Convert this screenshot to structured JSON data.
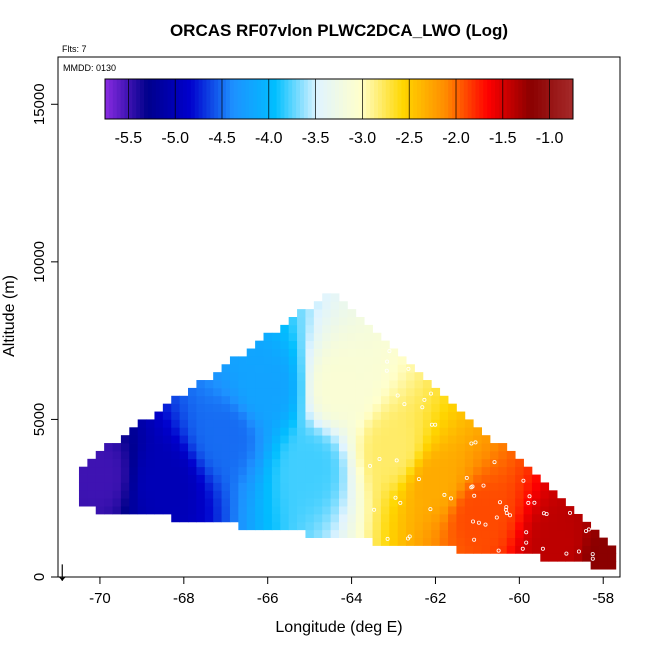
{
  "chart_data": {
    "type": "heatmap",
    "title": "ORCAS RF07vlon PLWC2DCA_LWO (Log)",
    "flts_label": "Flts: 7",
    "mmdd_label": "MMDD: 0130",
    "xlabel": "Longitude (deg E)",
    "ylabel": "Altitude (m)",
    "xlim": [
      -71,
      -57.6
    ],
    "ylim": [
      0,
      16500
    ],
    "x_ticks": [
      -70,
      -68,
      -66,
      -64,
      -62,
      -60,
      -58
    ],
    "x_tick_labels": [
      "-70",
      "-68",
      "-66",
      "-64",
      "-62",
      "-60",
      "-58"
    ],
    "y_ticks": [
      0,
      5000,
      10000,
      15000
    ],
    "y_tick_labels": [
      "0",
      "5000",
      "10000",
      "15000"
    ],
    "colorbar": {
      "range": [
        -5.75,
        -0.75
      ],
      "ticks": [
        -5.5,
        -5.0,
        -4.5,
        -4.0,
        -3.5,
        -3.0,
        -2.5,
        -2.0,
        -1.5,
        -1.0
      ],
      "tick_labels": [
        "-5.5",
        "-5.0",
        "-4.5",
        "-4.0",
        "-3.5",
        "-3.0",
        "-2.5",
        "-2.0",
        "-1.5",
        "-1.0"
      ],
      "colors": [
        "#8a2be2",
        "#00008b",
        "#0000cd",
        "#1e90ff",
        "#00bfff",
        "#e0f4ff",
        "#ffffcc",
        "#ffd700",
        "#ff8c00",
        "#ff0000",
        "#8b0000",
        "#a52a2a"
      ]
    },
    "arrow_marker": {
      "longitude": -70.9,
      "symbol": "↓"
    },
    "grid_cell": {
      "dlon": 0.2,
      "dalt": 250
    },
    "envelope": {
      "peak_longitude": -64.5,
      "peak_altitude": 8900,
      "left_base_longitude": -70.5,
      "left_base_altitude": 2200,
      "right_base_longitude": -57.8,
      "right_base_altitude": 300,
      "bottom_edge": [
        [
          -70.5,
          2200
        ],
        [
          -64,
          1200
        ],
        [
          -62.6,
          1000
        ],
        [
          -60,
          700
        ],
        [
          -57.8,
          300
        ]
      ]
    },
    "value_field_description_points": [
      {
        "longitude": -70,
        "altitude": 3200,
        "value": -5.5
      },
      {
        "longitude": -68.5,
        "altitude": 3000,
        "value": -5.0
      },
      {
        "longitude": -67,
        "altitude": 4500,
        "value": -4.5
      },
      {
        "longitude": -66,
        "altitude": 6000,
        "value": -4.2
      },
      {
        "longitude": -65,
        "altitude": 3500,
        "value": -3.8
      },
      {
        "longitude": -64.3,
        "altitude": 6000,
        "value": -3.1
      },
      {
        "longitude": -63,
        "altitude": 4000,
        "value": -2.8
      },
      {
        "longitude": -62,
        "altitude": 3000,
        "value": -2.3
      },
      {
        "longitude": -61,
        "altitude": 2000,
        "value": -1.9
      },
      {
        "longitude": -59,
        "altitude": 1000,
        "value": -1.4
      },
      {
        "longitude": -58,
        "altitude": 600,
        "value": -1.2
      }
    ]
  }
}
